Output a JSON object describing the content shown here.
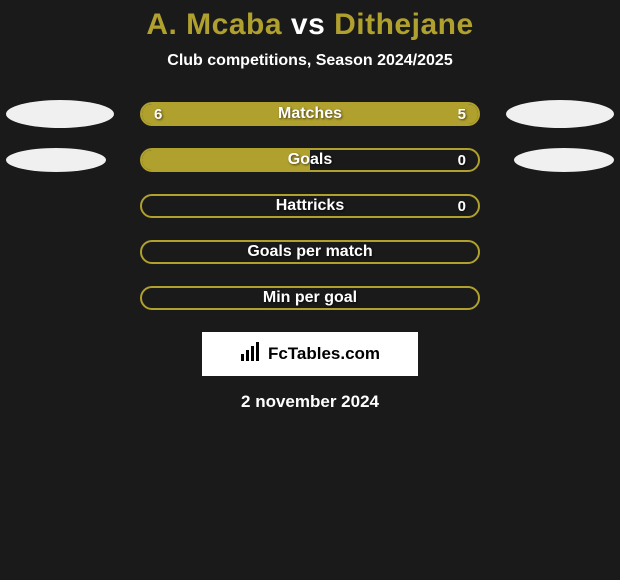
{
  "background_color": "#1a1a1a",
  "title": {
    "player_a": "A. Mcaba",
    "vs": " vs ",
    "player_b": "Dithejane",
    "color_a": "#b0a02e",
    "color_vs": "#ffffff",
    "color_b": "#b0a02e",
    "fontsize": 30
  },
  "subtitle": {
    "text": "Club competitions, Season 2024/2025",
    "fontsize": 16
  },
  "palette": {
    "bar_fill": "#b0a02e",
    "bar_border": "#b0a02e",
    "track_bg": "transparent",
    "ellipse": "#f0f0f0"
  },
  "ellipse_size": {
    "large_w": 108,
    "large_h": 28,
    "small_w": 100,
    "small_h": 24
  },
  "bar": {
    "track_width": 340,
    "track_height": 24,
    "border_radius": 12,
    "label_fontsize": 16,
    "value_fontsize": 15
  },
  "rows": [
    {
      "label": "Matches",
      "left_value": "6",
      "right_value": "5",
      "left_fill_pct": 55,
      "right_fill_pct": 45,
      "show_left_ellipse": true,
      "show_right_ellipse": true,
      "ellipse_size": "large"
    },
    {
      "label": "Goals",
      "left_value": "",
      "right_value": "0",
      "left_fill_pct": 50,
      "right_fill_pct": 0,
      "show_left_ellipse": true,
      "show_right_ellipse": true,
      "ellipse_size": "small"
    },
    {
      "label": "Hattricks",
      "left_value": "",
      "right_value": "0",
      "left_fill_pct": 0,
      "right_fill_pct": 0,
      "show_left_ellipse": false,
      "show_right_ellipse": false,
      "ellipse_size": "small"
    },
    {
      "label": "Goals per match",
      "left_value": "",
      "right_value": "",
      "left_fill_pct": 0,
      "right_fill_pct": 0,
      "show_left_ellipse": false,
      "show_right_ellipse": false,
      "ellipse_size": "small"
    },
    {
      "label": "Min per goal",
      "left_value": "",
      "right_value": "",
      "left_fill_pct": 0,
      "right_fill_pct": 0,
      "show_left_ellipse": false,
      "show_right_ellipse": false,
      "ellipse_size": "small"
    }
  ],
  "logo": {
    "text": "FcTables.com",
    "fontsize": 17,
    "plate_w": 216,
    "plate_h": 44,
    "icon_color": "#000000"
  },
  "date": {
    "text": "2 november 2024",
    "fontsize": 17
  }
}
